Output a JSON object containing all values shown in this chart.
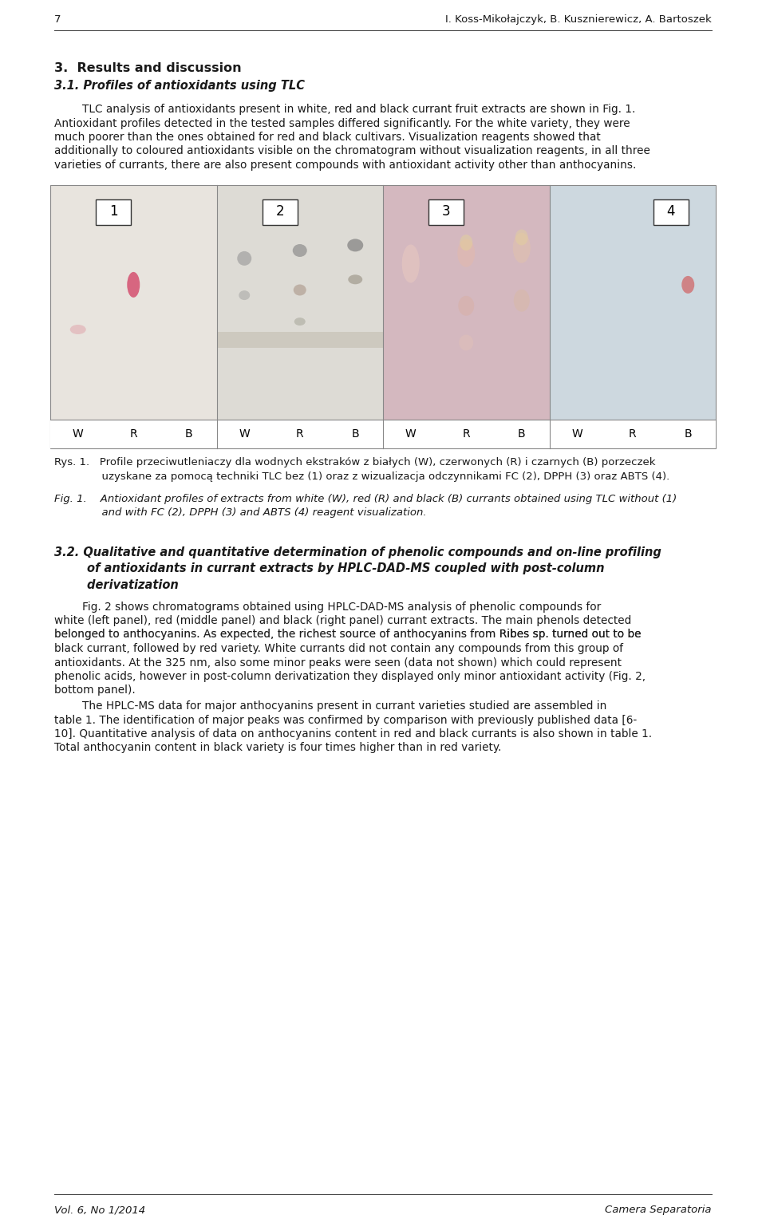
{
  "page_number": "7",
  "header_right": "I. Koss-Mikołajczyk, B. Kusznierewicz, A. Bartoszek",
  "section_title": "3.  Results and discussion",
  "subsection_title": "3.1. Profiles of antioxidants using TLC",
  "para1_indent": "        TLC analysis of antioxidants present in white, red and black currant fruit extracts are shown in Fig. 1.",
  "para1_lines": [
    "        TLC analysis of antioxidants present in white, red and black currant fruit extracts are shown in Fig. 1.",
    "Antioxidant profiles detected in the tested samples differed significantly. For the white variety, they were",
    "much poorer than the ones obtained for red and black cultivars. Visualization reagents showed that",
    "additionally to coloured antioxidants visible on the chromatogram without visualization reagents, in all three",
    "varieties of currants, there are also present compounds with antioxidant activity other than anthocyanins."
  ],
  "rys_line1": "Rys. 1.   Profile przeciwutleniaczy dla wodnych ekstraków z białych (W), czerwonych (R) i czarnych (B) porzeczek",
  "rys_line2": "              uzyskane za pomocą techniki TLC bez (1) oraz z wizualizacja odczynnikami FC (2), DPPH (3) oraz ABTS (4).",
  "fig_line1": "Fig. 1.    Antioxidant profiles of extracts from white (W), red (R) and black (B) currants obtained using TLC without (1)",
  "fig_line2": "              and with FC (2), DPPH (3) and ABTS (4) reagent visualization.",
  "sec2_line1": "3.2. Qualitative and quantitative determination of phenolic compounds and on-line profiling",
  "sec2_line2": "        of antioxidants in currant extracts by HPLC-DAD-MS coupled with post-column",
  "sec2_line3": "        derivatization",
  "para2_lines": [
    "        Fig. 2 shows chromatograms obtained using HPLC-DAD-MS analysis of phenolic compounds for",
    "white (left panel), red (middle panel) and black (right panel) currant extracts. The main phenols detected",
    "belonged to anthocyanins. As expected, the richest source of anthocyanins from Ribes sp. turned out to be",
    "black currant, followed by red variety. White currants did not contain any compounds from this group of",
    "antioxidants. At the 325 nm, also some minor peaks were seen (data not shown) which could represent",
    "phenolic acids, however in post-column derivatization they displayed only minor antioxidant activity (Fig. 2,",
    "bottom panel)."
  ],
  "para2_italic_word": "Ribes",
  "para3_lines": [
    "        The HPLC-MS data for major anthocyanins present in currant varieties studied are assembled in",
    "table 1. The identification of major peaks was confirmed by comparison with previously published data [6-",
    "10]. Quantitative analysis of data on anthocyanins content in red and black currants is also shown in table 1.",
    "Total anthocyanin content in black variety is four times higher than in red variety."
  ],
  "footer_left": "Vol. 6, No 1/2014",
  "footer_right": "Camera Separatoria",
  "tlc_labels_top": [
    "1",
    "2",
    "3",
    "4"
  ],
  "tlc_panel_colors": [
    "#e8e4de",
    "#dddbd5",
    "#d4b8bf",
    "#cdd8df"
  ],
  "background_color": "#ffffff"
}
